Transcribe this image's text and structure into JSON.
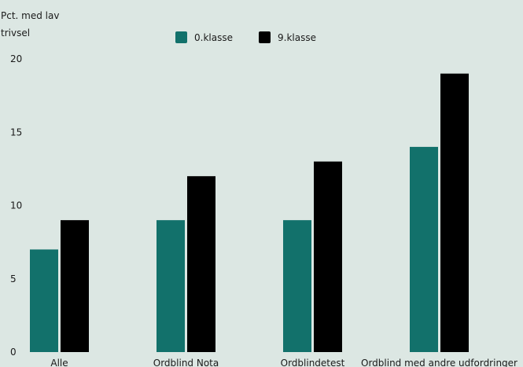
{
  "chart_data": {
    "type": "bar",
    "ylabel_lines": [
      "Pct. med lav",
      "trivsel"
    ],
    "xlabel": "",
    "categories": [
      "Alle",
      "Ordblind Nota",
      "Ordblindetest",
      "Ordblind med andre udfordringer"
    ],
    "series": [
      {
        "name": "0.klasse",
        "color": "#12716b",
        "values": [
          7,
          9,
          9,
          14
        ]
      },
      {
        "name": "9.klasse",
        "color": "#000000",
        "values": [
          9,
          12,
          13,
          19
        ]
      }
    ],
    "ylim": [
      0,
      20
    ],
    "yticks": [
      0,
      5,
      10,
      15,
      20
    ],
    "grid": false,
    "legend_position": "top-center"
  }
}
